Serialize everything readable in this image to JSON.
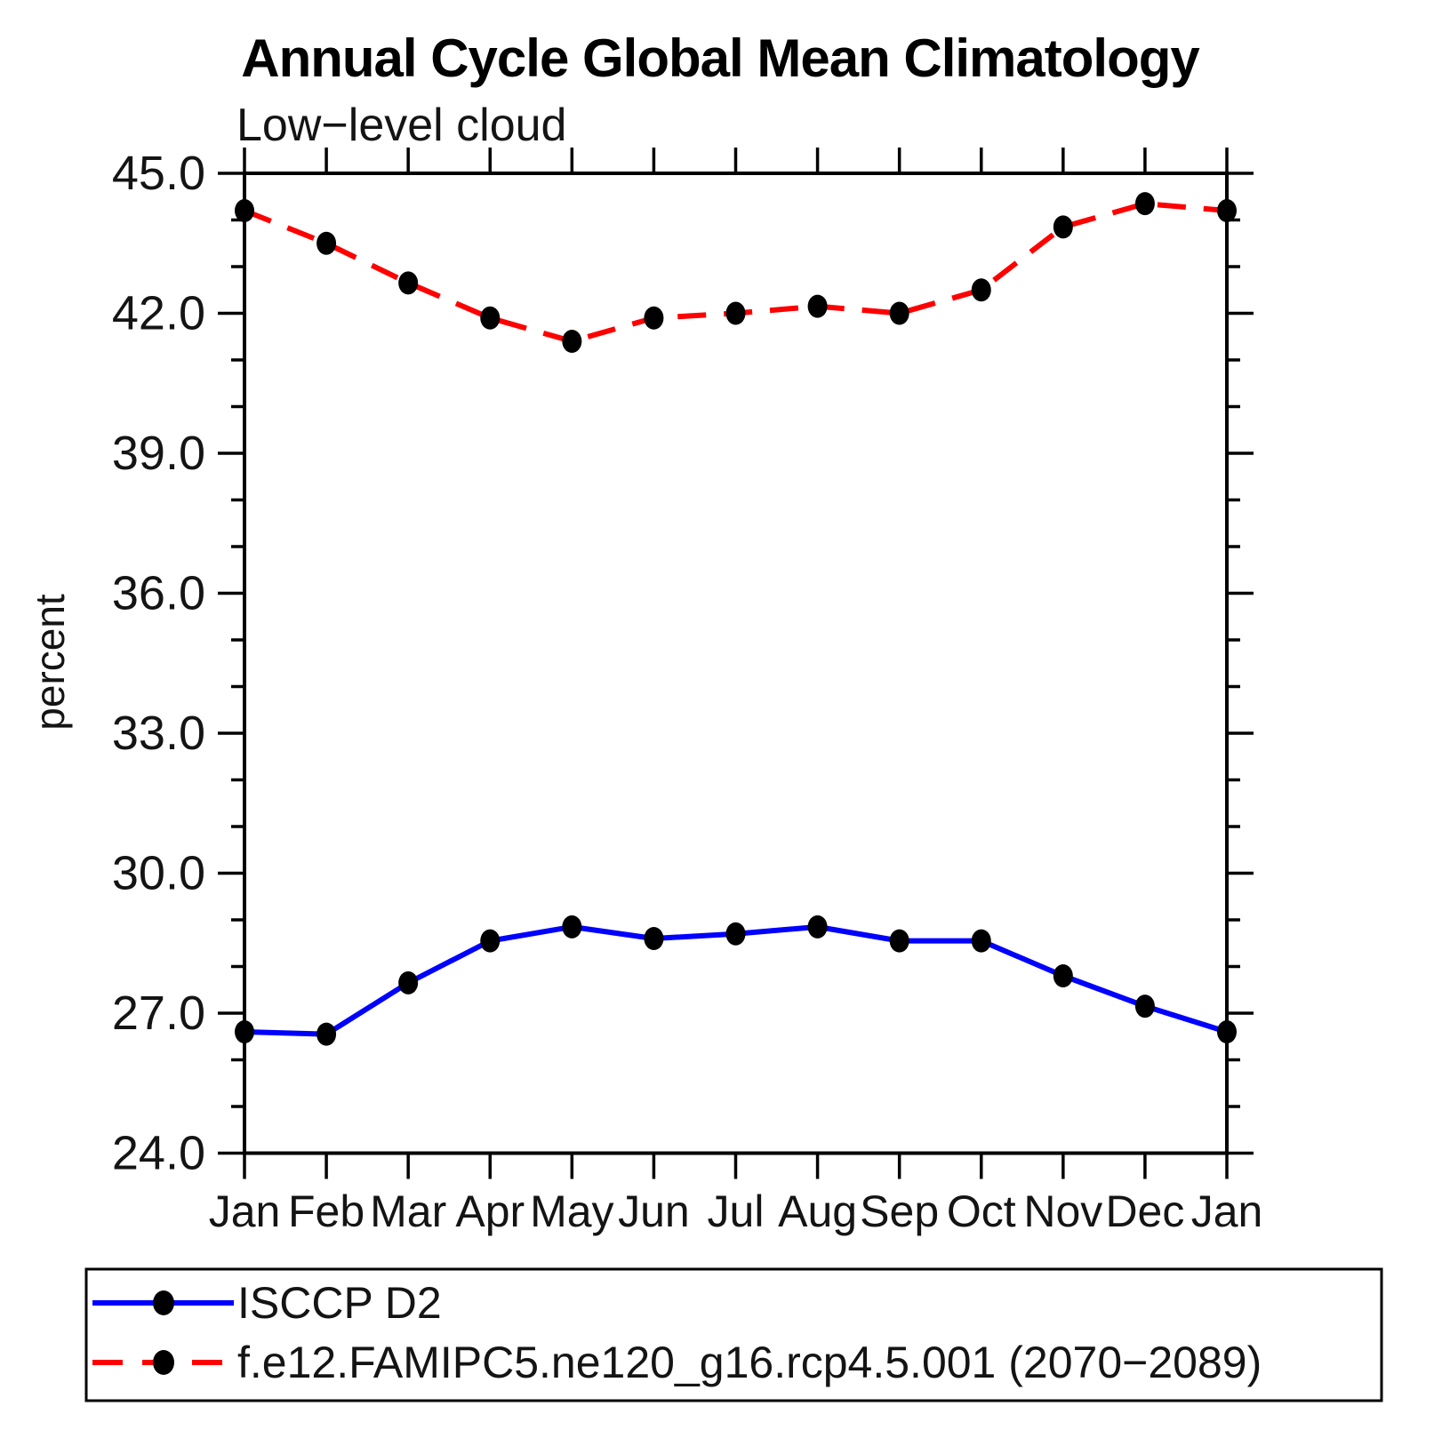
{
  "chart_data": {
    "type": "line",
    "title": "Annual Cycle Global Mean Climatology",
    "subtitle": "Low−level cloud",
    "ylabel": "percent",
    "ylim": [
      24.0,
      45.0
    ],
    "ytick_major_step": 3.0,
    "ytick_minor_step": 1.0,
    "ytick_labels": [
      "24.0",
      "27.0",
      "30.0",
      "33.0",
      "36.0",
      "39.0",
      "42.0",
      "45.0"
    ],
    "categories": [
      "Jan",
      "Feb",
      "Mar",
      "Apr",
      "May",
      "Jun",
      "Jul",
      "Aug",
      "Sep",
      "Oct",
      "Nov",
      "Dec",
      "Jan"
    ],
    "grid": false,
    "legend_position": "bottom-left-box",
    "frame_color": "#000000",
    "series": [
      {
        "name": "ISCCP D2",
        "color": "#0000FF",
        "style": "solid",
        "marker": "filled-circle",
        "marker_color": "#000000",
        "values": [
          26.6,
          26.55,
          27.65,
          28.55,
          28.85,
          28.6,
          28.7,
          28.85,
          28.55,
          28.55,
          27.8,
          27.15,
          26.6
        ]
      },
      {
        "name": "f.e12.FAMIPC5.ne120_g16.rcp4.5.001 (2070−2089)",
        "color": "#FF0000",
        "style": "dashed",
        "marker": "filled-circle",
        "marker_color": "#000000",
        "values": [
          44.2,
          43.5,
          42.65,
          41.9,
          41.4,
          41.9,
          42.0,
          42.15,
          42.0,
          42.5,
          43.85,
          44.35,
          44.2
        ]
      }
    ]
  }
}
